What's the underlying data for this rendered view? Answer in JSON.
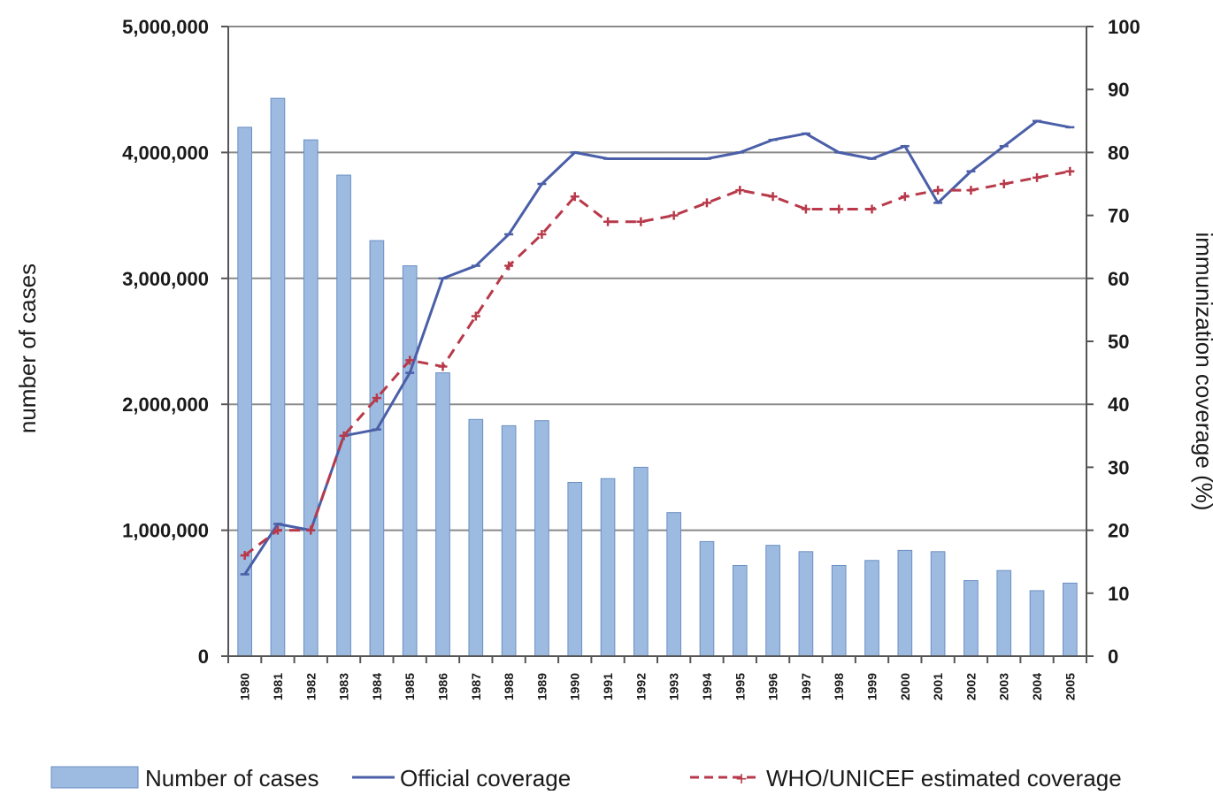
{
  "chart_data": {
    "type": "bar",
    "title": "",
    "categories": [
      "1980",
      "1981",
      "1982",
      "1983",
      "1984",
      "1985",
      "1986",
      "1987",
      "1988",
      "1989",
      "1990",
      "1991",
      "1992",
      "1993",
      "1994",
      "1995",
      "1996",
      "1997",
      "1998",
      "1999",
      "2000",
      "2001",
      "2002",
      "2003",
      "2004",
      "2005"
    ],
    "y_left": {
      "label": "number of cases",
      "lim": [
        0,
        5000000
      ],
      "ticks": [
        0,
        1000000,
        2000000,
        3000000,
        4000000,
        5000000
      ],
      "tick_labels": [
        "0",
        "1,000,000",
        "2,000,000",
        "3,000,000",
        "4,000,000",
        "5,000,000"
      ]
    },
    "y_right": {
      "label": "immunization coverage (%)",
      "lim": [
        0,
        100
      ],
      "ticks": [
        0,
        10,
        20,
        30,
        40,
        50,
        60,
        70,
        80,
        90,
        100
      ],
      "tick_labels": [
        "0",
        "10",
        "20",
        "30",
        "40",
        "50",
        "60",
        "70",
        "80",
        "90",
        "100"
      ]
    },
    "series": [
      {
        "name": "Number of cases",
        "type": "bar",
        "axis": "left",
        "color": "#9dbbe0",
        "values": [
          4200000,
          4430000,
          4100000,
          3820000,
          3300000,
          3100000,
          2250000,
          1880000,
          1830000,
          1870000,
          1380000,
          1410000,
          1500000,
          1140000,
          910000,
          720000,
          880000,
          830000,
          720000,
          760000,
          840000,
          830000,
          600000,
          680000,
          520000,
          580000
        ]
      },
      {
        "name": "Official coverage",
        "type": "line",
        "axis": "right",
        "color": "#4a5fa8",
        "values": [
          13,
          21,
          20,
          35,
          36,
          45,
          60,
          62,
          67,
          75,
          80,
          79,
          79,
          79,
          79,
          80,
          82,
          83,
          80,
          79,
          81,
          72,
          77,
          81,
          85,
          84
        ]
      },
      {
        "name": "WHO/UNICEF estimated coverage",
        "type": "line",
        "axis": "right",
        "color": "#b83a4a",
        "values": [
          16,
          20,
          20,
          35,
          41,
          47,
          46,
          54,
          62,
          67,
          73,
          69,
          69,
          70,
          72,
          74,
          73,
          71,
          71,
          71,
          73,
          74,
          74,
          75,
          76,
          77
        ]
      }
    ],
    "grid": true,
    "legend": "bottom"
  }
}
